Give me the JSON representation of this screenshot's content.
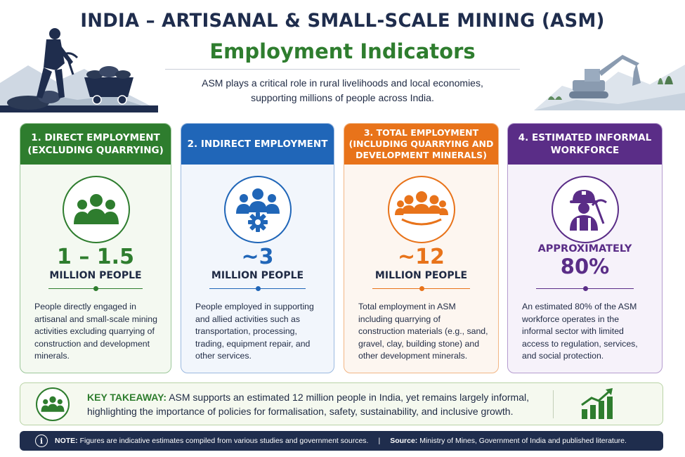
{
  "header": {
    "title_line1": "INDIA – ARTISANAL & SMALL-SCALE MINING (ASM)",
    "title_line2": "Employment Indicators",
    "subtitle": "ASM plays a critical role in rural livelihoods and local economies, supporting millions of people across India."
  },
  "cards": [
    {
      "header": "1. DIRECT EMPLOYMENT (EXCLUDING QUARRYING)",
      "value": "1 – 1.5",
      "unit": "MILLION PEOPLE",
      "description": "People directly engaged in artisanal and small-scale mining activities excluding quarrying of construction and development minerals.",
      "icon": "people-group-icon",
      "color": "#2e7d2e"
    },
    {
      "header": "2. INDIRECT EMPLOYMENT",
      "value": "~3",
      "unit": "MILLION PEOPLE",
      "description": "People employed in supporting and allied activities such as transportation, processing, trading, equipment repair, and other services.",
      "icon": "people-gear-icon",
      "color": "#2066b8"
    },
    {
      "header": "3. TOTAL EMPLOYMENT (INCLUDING QUARRYING AND DEVELOPMENT MINERALS)",
      "value": "~12",
      "unit": "MILLION PEOPLE",
      "description": "Total employment in ASM including quarrying of construction materials (e.g., sand, gravel, clay, building stone) and other development minerals.",
      "icon": "crowd-icon",
      "color": "#e8731a"
    },
    {
      "header": "4. ESTIMATED INFORMAL WORKFORCE",
      "value_label": "APPROXIMATELY",
      "value": "80%",
      "description": "An estimated 80% of the ASM workforce operates in the informal sector with limited access to regulation, services, and social protection.",
      "icon": "miner-icon",
      "color": "#5a2d87"
    }
  ],
  "takeaway": {
    "label": "KEY TAKEAWAY:",
    "text": "ASM supports an estimated 12 million people in India, yet remains largely informal, highlighting the importance of policies for formalisation, safety, sustainability, and inclusive growth."
  },
  "footer": {
    "note_label": "NOTE:",
    "note_text": "Figures are indicative estimates compiled from various studies and government sources.",
    "separator": "|",
    "source_label": "Source:",
    "source_text": "Ministry of Mines, Government of India and published literature."
  }
}
